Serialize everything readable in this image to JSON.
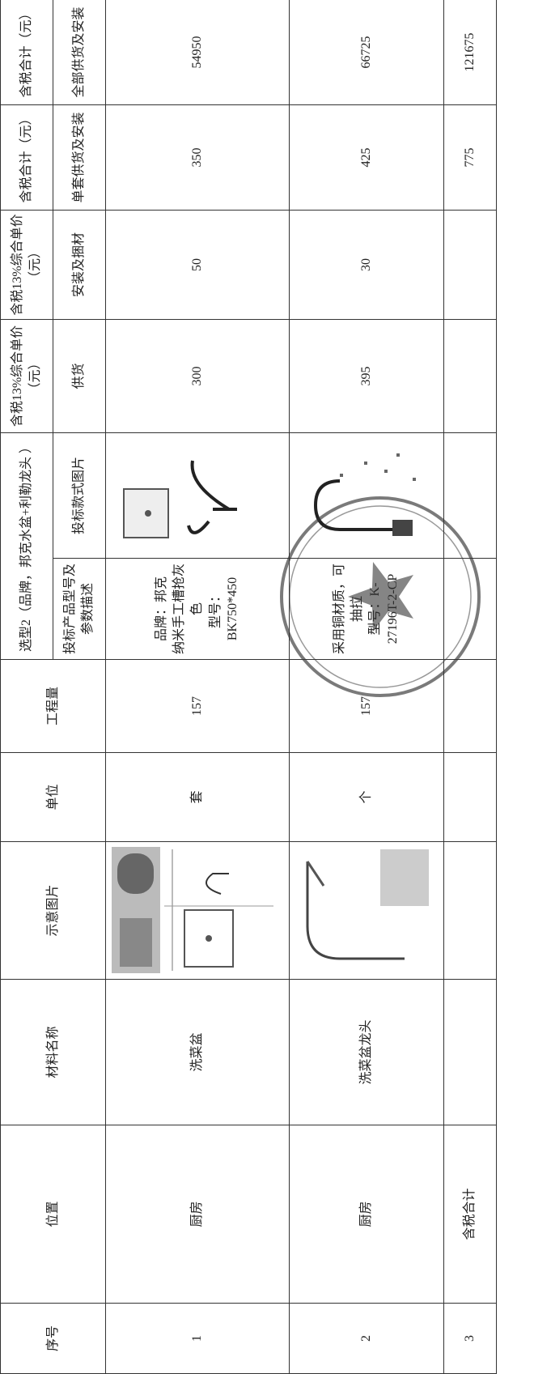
{
  "table": {
    "header_row1": [
      "序号",
      "位置",
      "材料名称",
      "示意图片",
      "单位",
      "工程量",
      "选型2（品牌，邦克水盆+利勒龙头 ）",
      "含税13%综合单价（元）",
      "含税13%综合单价（元）",
      "含税合计（元）",
      "含税合计（元）"
    ],
    "header_row2": [
      "投标产品型号及参数描述",
      "投标款式图片",
      "供货",
      "安装及捆材",
      "单套供货及安装",
      "全部供货及安装"
    ],
    "rows": [
      {
        "no": "1",
        "location": "厨房",
        "material": "洗菜盆",
        "unit": "套",
        "quantity": 157,
        "description": [
          "品牌：邦克",
          "纳米手工槽抢灰色",
          "型号：BK750*450"
        ],
        "price_supply": 300,
        "price_install": 50,
        "total_per_set": 350,
        "total_all": 54950
      },
      {
        "no": "2",
        "location": "厨房",
        "material": "洗菜盆龙头",
        "unit": "个",
        "quantity": 157,
        "description": [
          "采用铜材质，可抽拉",
          "型号：K-27196T-2-CP"
        ],
        "price_supply": 395,
        "price_install": 30,
        "total_per_set": 425,
        "total_all": 66725
      }
    ],
    "total_row": {
      "no": "3",
      "label": "含税合计",
      "total_per_set": 775,
      "total_all": 121675
    }
  }
}
